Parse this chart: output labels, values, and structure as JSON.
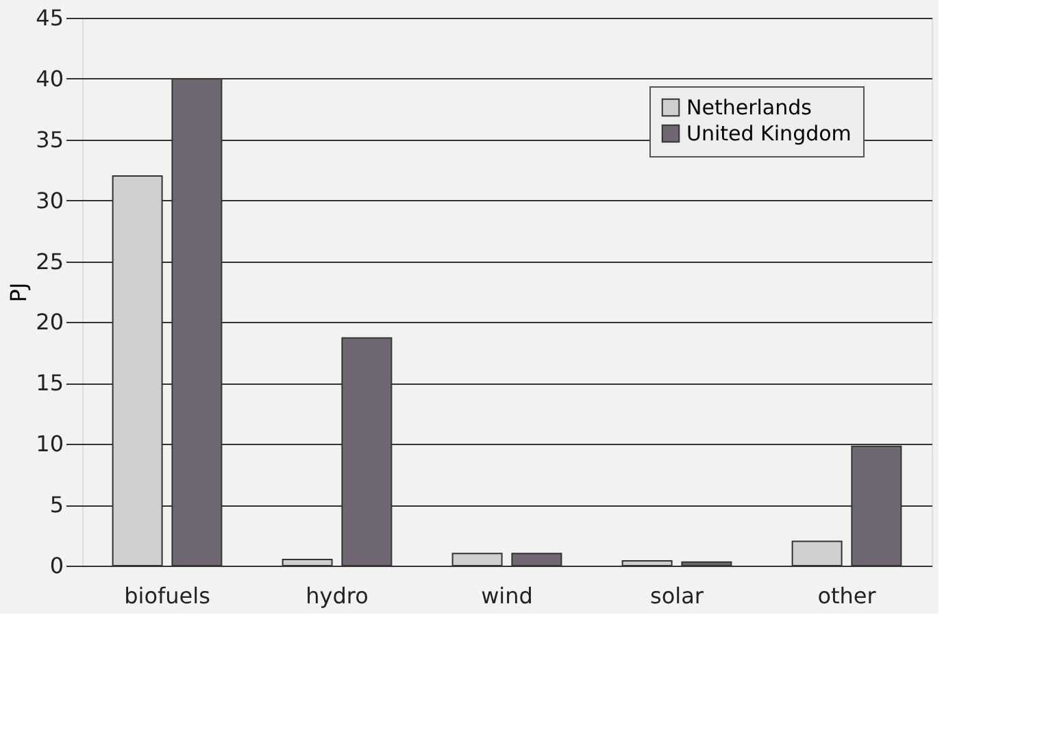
{
  "chart_data": {
    "type": "bar",
    "ylabel": "PJ",
    "categories": [
      "biofuels",
      "hydro",
      "wind",
      "solar",
      "other"
    ],
    "series": [
      {
        "name": "Netherlands",
        "color": "#cfcfcf",
        "values": [
          32,
          0.5,
          1,
          0.4,
          2
        ]
      },
      {
        "name": "United Kingdom",
        "color": "#6f6873",
        "values": [
          40,
          18.7,
          1,
          0.3,
          9.8
        ]
      }
    ],
    "ylim": [
      0,
      45
    ],
    "yticks": [
      0,
      5,
      10,
      15,
      20,
      25,
      30,
      35,
      40,
      45
    ],
    "grid": "y",
    "legend": "top right"
  }
}
